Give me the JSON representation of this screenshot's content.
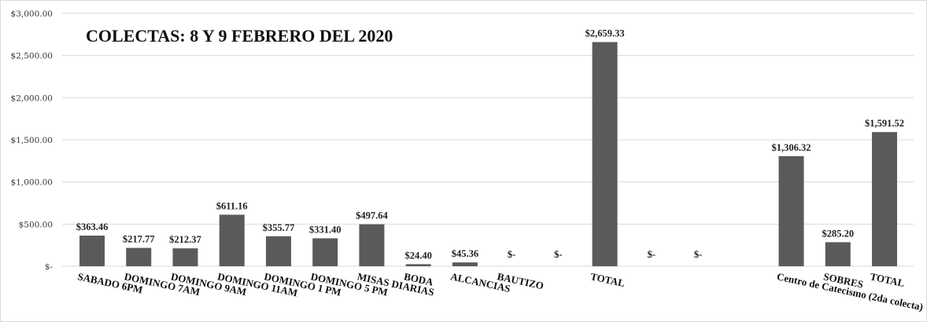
{
  "chart_data": {
    "type": "bar",
    "title": "COLECTAS:  8 Y 9 FEBRERO DEL 2020",
    "xlabel": "",
    "ylabel": "",
    "ylim": [
      0,
      3000
    ],
    "grid": true,
    "legend": "none",
    "bar_color": "#5a5a5a",
    "y_ticks": [
      0,
      500,
      1000,
      1500,
      2000,
      2500,
      3000
    ],
    "y_tick_labels": [
      "$-",
      "$500.00",
      "$1,000.00",
      "$1,500.00",
      "$2,000.00",
      "$2,500.00",
      "$3,000.00"
    ],
    "categories": [
      "SABADO 6PM",
      "DOMINGO 7AM",
      "DOMINGO 9AM",
      "DOMINGO 11AM",
      "DOMINGO 1 PM",
      "DOMINGO 5 PM",
      "MISAS DIARIAS",
      "BODA",
      "ALCANCIAS",
      "BAUTIZO",
      "",
      "TOTAL",
      "",
      "",
      "",
      "Centro de Catecismo (2da colecta)",
      "SOBRES",
      "TOTAL"
    ],
    "values": [
      363.46,
      217.77,
      212.37,
      611.16,
      355.77,
      331.4,
      497.64,
      24.4,
      45.36,
      0,
      0,
      2659.33,
      0,
      0,
      0,
      1306.32,
      285.2,
      1591.52
    ],
    "data_labels": [
      "$363.46",
      "$217.77",
      "$212.37",
      "$611.16",
      "$355.77",
      "$331.40",
      "$497.64",
      "$24.40",
      "$45.36",
      "$-",
      "$-",
      "$2,659.33",
      "$-",
      "$-",
      "",
      "$1,306.32",
      "$285.20",
      "$1,591.52"
    ]
  }
}
